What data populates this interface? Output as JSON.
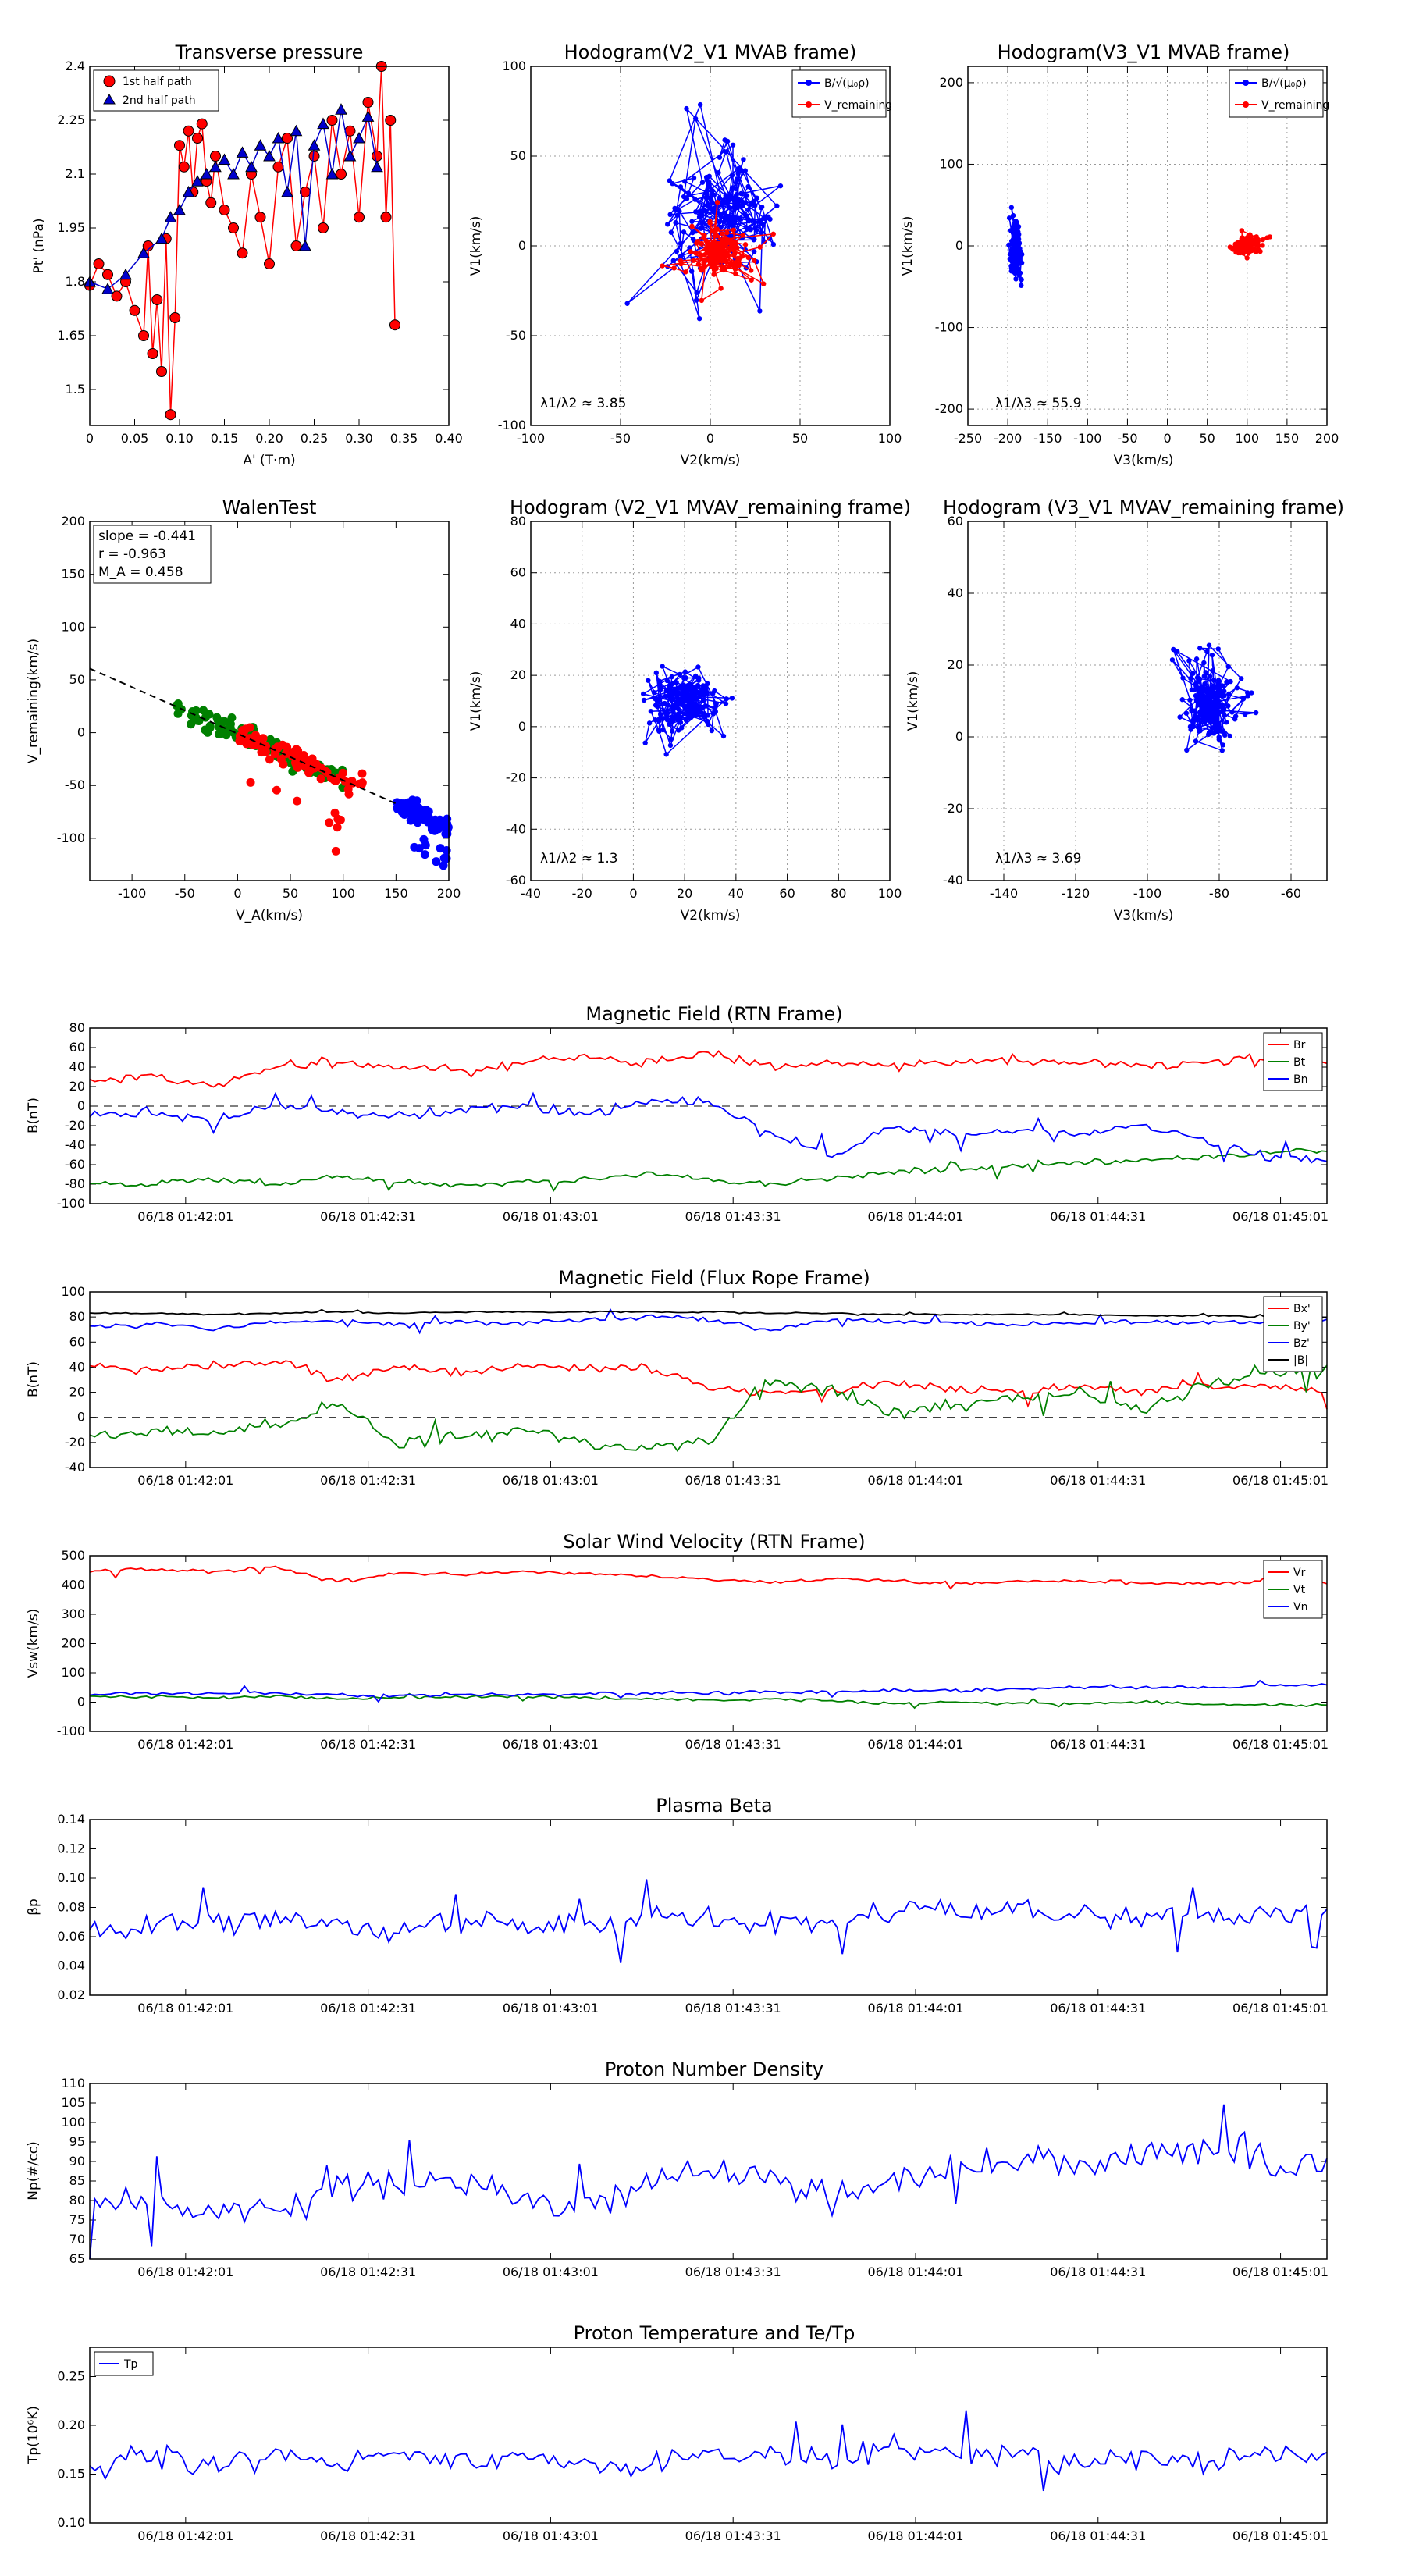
{
  "chart_data": [
    {
      "id": "pt",
      "type": "scatter",
      "title": "Transverse pressure",
      "xlabel": "A' (T·m)",
      "ylabel": "Pt' (nPa)",
      "xlim": [
        0.0,
        0.4
      ],
      "ylim": [
        1.4,
        2.4
      ],
      "xticks": [
        0.0,
        0.05,
        0.1,
        0.15,
        0.2,
        0.25,
        0.3,
        0.35,
        0.4
      ],
      "yticks": [
        1.5,
        1.65,
        1.8,
        1.95,
        2.1,
        2.25,
        2.4
      ],
      "legend": [
        "1st half path",
        "2nd half path"
      ],
      "series": [
        {
          "name": "1st half path",
          "color": "#ff0000",
          "marker": "circle",
          "x": [
            0.0,
            0.01,
            0.02,
            0.03,
            0.04,
            0.05,
            0.06,
            0.065,
            0.07,
            0.075,
            0.08,
            0.085,
            0.09,
            0.095,
            0.1,
            0.105,
            0.11,
            0.115,
            0.12,
            0.125,
            0.13,
            0.135,
            0.14,
            0.15,
            0.16,
            0.17,
            0.18,
            0.19,
            0.2,
            0.21,
            0.22,
            0.23,
            0.24,
            0.25,
            0.26,
            0.27,
            0.28,
            0.29,
            0.3,
            0.31,
            0.32,
            0.325,
            0.33,
            0.335,
            0.34
          ],
          "y": [
            1.79,
            1.85,
            1.82,
            1.76,
            1.8,
            1.72,
            1.65,
            1.9,
            1.6,
            1.75,
            1.55,
            1.92,
            1.43,
            1.7,
            2.18,
            2.12,
            2.22,
            2.05,
            2.2,
            2.24,
            2.08,
            2.02,
            2.15,
            2.0,
            1.95,
            1.88,
            2.1,
            1.98,
            1.85,
            2.12,
            2.2,
            1.9,
            2.05,
            2.15,
            1.95,
            2.25,
            2.1,
            2.22,
            1.98,
            2.3,
            2.15,
            2.4,
            1.98,
            2.25,
            1.68
          ]
        },
        {
          "name": "2nd half path",
          "color": "#0000cc",
          "marker": "triangle",
          "x": [
            0.0,
            0.02,
            0.04,
            0.06,
            0.08,
            0.09,
            0.1,
            0.11,
            0.12,
            0.13,
            0.14,
            0.15,
            0.16,
            0.17,
            0.18,
            0.19,
            0.2,
            0.21,
            0.22,
            0.23,
            0.24,
            0.25,
            0.26,
            0.27,
            0.28,
            0.29,
            0.3,
            0.31,
            0.32
          ],
          "y": [
            1.8,
            1.78,
            1.82,
            1.88,
            1.92,
            1.98,
            2.0,
            2.05,
            2.08,
            2.1,
            2.12,
            2.14,
            2.1,
            2.16,
            2.12,
            2.18,
            2.15,
            2.2,
            2.05,
            2.22,
            1.9,
            2.18,
            2.24,
            2.1,
            2.28,
            2.15,
            2.2,
            2.26,
            2.12
          ]
        }
      ]
    },
    {
      "id": "hodo1",
      "type": "line",
      "title": "Hodogram(V2_V1 MVAB frame)",
      "xlabel": "V2(km/s)",
      "ylabel": "V1(km/s)",
      "xlim": [
        -100,
        100
      ],
      "ylim": [
        -100,
        100
      ],
      "xticks": [
        -100,
        -50,
        0,
        50,
        100
      ],
      "yticks": [
        -100,
        -50,
        0,
        50,
        100
      ],
      "legend": [
        "B/√(μ₀ρ)",
        "V_remaining"
      ],
      "annotation": "λ1/λ2 ≈ 3.85",
      "series": [
        {
          "name": "B",
          "color": "#0000ff",
          "seed": 11,
          "cx": 5,
          "cy": 15,
          "sx": 45,
          "sy": 55,
          "n": 180
        },
        {
          "name": "V",
          "color": "#ff0000",
          "seed": 23,
          "cx": 5,
          "cy": -5,
          "sx": 25,
          "sy": 22,
          "n": 150
        }
      ]
    },
    {
      "id": "hodo2",
      "type": "line",
      "title": "Hodogram(V3_V1 MVAB frame)",
      "xlabel": "V3(km/s)",
      "ylabel": "V1(km/s)",
      "xlim": [
        -250,
        200
      ],
      "ylim": [
        -220,
        220
      ],
      "xticks": [
        -250,
        -200,
        -150,
        -100,
        -50,
        0,
        50,
        100,
        150,
        200
      ],
      "yticks": [
        -200,
        -100,
        0,
        100,
        200
      ],
      "legend": [
        "B/√(μ₀ρ)",
        "V_remaining"
      ],
      "annotation": "λ1/λ3 ≈ 55.9",
      "series": [
        {
          "name": "B",
          "color": "#0000ff",
          "seed": 31,
          "cx": -190,
          "cy": 0,
          "sx": 10,
          "sy": 55,
          "n": 180
        },
        {
          "name": "V",
          "color": "#ff0000",
          "seed": 37,
          "cx": 100,
          "cy": 0,
          "sx": 25,
          "sy": 18,
          "n": 150
        }
      ]
    },
    {
      "id": "walen",
      "type": "scatter",
      "title": "WalenTest",
      "xlabel": "V_A(km/s)",
      "ylabel": "V_remaining(km/s)",
      "xlim": [
        -140,
        200
      ],
      "ylim": [
        -140,
        200
      ],
      "xticks": [
        -100,
        -50,
        0,
        50,
        100,
        150,
        200
      ],
      "yticks": [
        -100,
        -50,
        0,
        50,
        100,
        150,
        200
      ],
      "stats": [
        "slope = -0.441",
        "r = -0.963",
        "M_A = 0.458"
      ],
      "fit_slope": -0.441,
      "fit_intercept": -1,
      "series": [
        {
          "name": "green",
          "color": "#008000",
          "seed": 41,
          "xmin": -60,
          "xmax": 100,
          "n": 110
        },
        {
          "name": "red",
          "color": "#ff0000",
          "seed": 43,
          "xmin": 0,
          "xmax": 120,
          "n": 90
        },
        {
          "name": "blue",
          "color": "#0000ff",
          "seed": 47,
          "xmin": 150,
          "xmax": 200,
          "n": 90
        }
      ]
    },
    {
      "id": "hodo3",
      "type": "line",
      "title": "Hodogram (V2_V1 MVAV_remaining frame)",
      "xlabel": "V2(km/s)",
      "ylabel": "V1(km/s)",
      "xlim": [
        -40,
        100
      ],
      "ylim": [
        -60,
        80
      ],
      "xticks": [
        -40,
        -20,
        0,
        20,
        40,
        60,
        80,
        100
      ],
      "yticks": [
        -60,
        -40,
        -20,
        0,
        20,
        40,
        60,
        80
      ],
      "annotation": "λ1/λ2 ≈ 1.3",
      "series": [
        {
          "name": "V",
          "color": "#0000ff",
          "seed": 53,
          "cx": 20,
          "cy": 10,
          "sx": 22,
          "sy": 18,
          "n": 200
        }
      ]
    },
    {
      "id": "hodo4",
      "type": "line",
      "title": "Hodogram (V3_V1 MVAV_remaining frame)",
      "xlabel": "V3(km/s)",
      "ylabel": "V1(km/s)",
      "xlim": [
        -150,
        -50
      ],
      "ylim": [
        -40,
        60
      ],
      "xticks": [
        -140,
        -120,
        -100,
        -80,
        -60
      ],
      "yticks": [
        -40,
        -20,
        0,
        20,
        40,
        60
      ],
      "annotation": "λ1/λ3 ≈ 3.69",
      "series": [
        {
          "name": "V",
          "color": "#0000ff",
          "seed": 59,
          "cx": -82,
          "cy": 10,
          "sx": 12,
          "sy": 18,
          "n": 200
        }
      ]
    },
    {
      "id": "ts1",
      "type": "line",
      "title": "Magnetic Field (RTN Frame)",
      "ylabel": "B(nT)",
      "ylim": [
        -100,
        80
      ],
      "yticks": [
        -100,
        -80,
        -60,
        -40,
        -20,
        0,
        20,
        40,
        60,
        80
      ],
      "xticks": [
        "06/18 01:42:01",
        "06/18 01:42:31",
        "06/18 01:43:01",
        "06/18 01:43:31",
        "06/18 01:44:01",
        "06/18 01:44:31",
        "06/18 01:45:01"
      ],
      "zero_line": true,
      "legend_loc": "top-right",
      "series": [
        {
          "name": "Br",
          "color": "#ff0000",
          "seed": 61,
          "knots": [
            25,
            30,
            20,
            40,
            45,
            40,
            35,
            45,
            50,
            45,
            55,
            40,
            45,
            42,
            45,
            48,
            45,
            42,
            45,
            48,
            45
          ],
          "noise": 5
        },
        {
          "name": "Bt",
          "color": "#008000",
          "seed": 67,
          "knots": [
            -78,
            -80,
            -75,
            -80,
            -72,
            -78,
            -80,
            -78,
            -75,
            -70,
            -75,
            -80,
            -75,
            -68,
            -65,
            -60,
            -58,
            -55,
            -52,
            -48,
            -45
          ],
          "noise": 3
        },
        {
          "name": "Bn",
          "color": "#0000ff",
          "seed": 71,
          "knots": [
            -10,
            -5,
            -15,
            0,
            -5,
            -10,
            -5,
            0,
            -10,
            5,
            5,
            -30,
            -50,
            -20,
            -30,
            -25,
            -30,
            -20,
            -35,
            -50,
            -55
          ],
          "noise": 5
        }
      ]
    },
    {
      "id": "ts2",
      "type": "line",
      "title": "Magnetic Field (Flux Rope Frame)",
      "ylabel": "B(nT)",
      "ylim": [
        -40,
        100
      ],
      "yticks": [
        -40,
        -20,
        0,
        20,
        40,
        60,
        80,
        100
      ],
      "xticks": [
        "06/18 01:42:01",
        "06/18 01:42:31",
        "06/18 01:43:01",
        "06/18 01:43:31",
        "06/18 01:44:01",
        "06/18 01:44:31",
        "06/18 01:45:01"
      ],
      "zero_line": true,
      "legend_loc": "top-right",
      "series": [
        {
          "name": "Bx'",
          "color": "#ff0000",
          "seed": 73,
          "knots": [
            40,
            38,
            42,
            45,
            30,
            40,
            35,
            42,
            38,
            40,
            25,
            20,
            22,
            28,
            22,
            20,
            25,
            22,
            25,
            25,
            20
          ],
          "noise": 4
        },
        {
          "name": "By'",
          "color": "#008000",
          "seed": 79,
          "knots": [
            -15,
            -10,
            -12,
            -5,
            10,
            -20,
            -15,
            -10,
            -20,
            -25,
            -20,
            30,
            20,
            5,
            10,
            15,
            20,
            5,
            25,
            35,
            38
          ],
          "noise": 5
        },
        {
          "name": "Bz'",
          "color": "#0000ff",
          "seed": 83,
          "knots": [
            72,
            75,
            70,
            76,
            78,
            74,
            76,
            75,
            78,
            80,
            78,
            70,
            78,
            76,
            75,
            74,
            75,
            76,
            75,
            76,
            78
          ],
          "noise": 2
        },
        {
          "name": "|B|",
          "color": "#000000",
          "seed": 89,
          "knots": [
            83,
            83,
            82,
            83,
            84,
            83,
            84,
            84,
            84,
            84,
            84,
            83,
            83,
            82,
            82,
            82,
            82,
            81,
            81,
            80,
            80
          ],
          "noise": 0.6
        }
      ]
    },
    {
      "id": "ts3",
      "type": "line",
      "title": "Solar Wind Velocity (RTN Frame)",
      "ylabel": "Vsw(km/s)",
      "ylim": [
        -100,
        500
      ],
      "yticks": [
        -100,
        0,
        100,
        200,
        300,
        400,
        500
      ],
      "xticks": [
        "06/18 01:42:01",
        "06/18 01:42:31",
        "06/18 01:43:01",
        "06/18 01:43:31",
        "06/18 01:44:01",
        "06/18 01:44:31",
        "06/18 01:45:01"
      ],
      "legend_loc": "top-right",
      "series": [
        {
          "name": "Vr",
          "color": "#ff0000",
          "seed": 97,
          "knots": [
            450,
            455,
            445,
            460,
            410,
            440,
            435,
            445,
            440,
            430,
            420,
            410,
            420,
            415,
            405,
            410,
            415,
            408,
            405,
            410,
            405
          ],
          "noise": 6
        },
        {
          "name": "Vt",
          "color": "#008000",
          "seed": 101,
          "knots": [
            20,
            18,
            15,
            20,
            12,
            15,
            18,
            20,
            15,
            12,
            5,
            10,
            5,
            -5,
            0,
            -5,
            -5,
            0,
            -5,
            -10,
            -10
          ],
          "noise": 5
        },
        {
          "name": "Vn",
          "color": "#0000ff",
          "seed": 103,
          "knots": [
            25,
            28,
            30,
            30,
            25,
            22,
            25,
            25,
            28,
            30,
            30,
            35,
            35,
            40,
            40,
            45,
            50,
            50,
            50,
            55,
            60
          ],
          "noise": 6
        }
      ]
    },
    {
      "id": "ts4",
      "type": "line",
      "title": "Plasma Beta",
      "ylabel": "βp",
      "ylim": [
        0.02,
        0.14
      ],
      "yticks": [
        0.02,
        0.04,
        0.06,
        0.08,
        0.1,
        0.12,
        0.14
      ],
      "xticks": [
        "06/18 01:42:01",
        "06/18 01:42:31",
        "06/18 01:43:01",
        "06/18 01:43:31",
        "06/18 01:44:01",
        "06/18 01:44:31",
        "06/18 01:45:01"
      ],
      "series": [
        {
          "name": "beta",
          "color": "#0000ff",
          "seed": 107,
          "knots": [
            0.065,
            0.068,
            0.07,
            0.072,
            0.068,
            0.065,
            0.07,
            0.068,
            0.066,
            0.072,
            0.07,
            0.068,
            0.072,
            0.078,
            0.08,
            0.078,
            0.075,
            0.072,
            0.075,
            0.076,
            0.08
          ],
          "noise": 0.008
        }
      ]
    },
    {
      "id": "ts5",
      "type": "line",
      "title": "Proton Number Density",
      "ylabel": "Np(#/cc)",
      "ylim": [
        65,
        110
      ],
      "yticks": [
        65,
        70,
        75,
        80,
        85,
        90,
        95,
        100,
        105,
        110
      ],
      "xticks": [
        "06/18 01:42:01",
        "06/18 01:42:31",
        "06/18 01:43:01",
        "06/18 01:43:31",
        "06/18 01:44:01",
        "06/18 01:44:31",
        "06/18 01:45:01"
      ],
      "series": [
        {
          "name": "Np",
          "color": "#0000ff",
          "seed": 109,
          "knots": [
            78,
            80,
            76,
            78,
            82,
            85,
            84,
            80,
            78,
            85,
            88,
            85,
            80,
            85,
            90,
            92,
            88,
            92,
            95,
            90,
            88
          ],
          "noise": 4
        }
      ]
    },
    {
      "id": "ts6",
      "type": "line",
      "title": "Proton Temperature and Te/Tp",
      "ylabel": "Tp(10⁶K)",
      "ylim": [
        0.1,
        0.28
      ],
      "yticks": [
        0.1,
        0.15,
        0.2,
        0.25
      ],
      "xticks": [
        "06/18 01:42:01",
        "06/18 01:42:31",
        "06/18 01:43:01",
        "06/18 01:43:31",
        "06/18 01:44:01",
        "06/18 01:44:31",
        "06/18 01:45:01"
      ],
      "legend_loc": "top-left",
      "series": [
        {
          "name": "Tp",
          "color": "#0000ff",
          "seed": 113,
          "knots": [
            0.16,
            0.17,
            0.16,
            0.17,
            0.16,
            0.17,
            0.16,
            0.17,
            0.16,
            0.16,
            0.17,
            0.17,
            0.16,
            0.18,
            0.17,
            0.17,
            0.16,
            0.17,
            0.16,
            0.17,
            0.17
          ],
          "noise": 0.012
        }
      ]
    }
  ]
}
